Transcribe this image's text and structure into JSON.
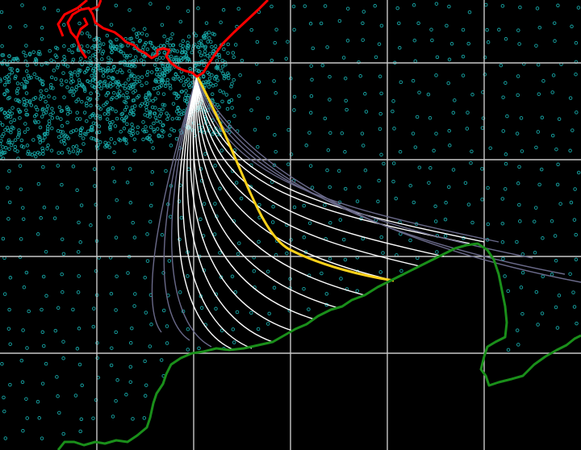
{
  "colors": {
    "background": "#000000",
    "grid": "#c8c8c8",
    "mesh_nodes": "#17a7a7",
    "north_coast": "#ff0000",
    "south_coast": "#1a8f1a",
    "route_fan": "#ffffff",
    "route_faded": "#6a6a8a",
    "highlighted_route": "#ffd21a"
  },
  "map": {
    "type": "route-fan-map",
    "origin_point": "north-coast-center",
    "route_count": 19,
    "highlighted_route_index": 5,
    "grid": "on",
    "labels": []
  }
}
